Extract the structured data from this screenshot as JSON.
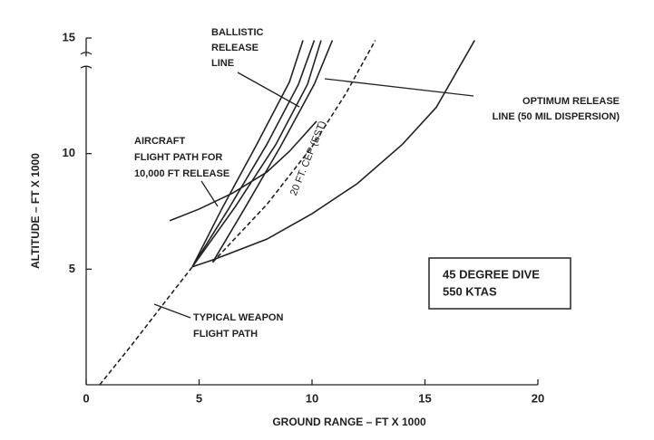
{
  "chart_data": {
    "type": "line",
    "xlabel": "GROUND RANGE – FT X 1000",
    "ylabel": "ALTITUDE – FT X 1000",
    "xlim": [
      0,
      20
    ],
    "xticks": [
      0,
      5,
      10,
      15,
      20
    ],
    "ylim": [
      0,
      15
    ],
    "yticks": [
      5,
      10,
      15
    ],
    "series": [
      {
        "color": "#222",
        "dashed": true,
        "x": [
          0.6,
          2,
          3.5,
          4.7
        ],
        "values": [
          0,
          1.7,
          3.6,
          5.1
        ]
      },
      {
        "color": "#222",
        "dashed": false,
        "x": [
          4.7,
          6,
          7.5,
          9,
          9.6
        ],
        "values": [
          5.1,
          7.6,
          10.3,
          13.1,
          14.9
        ]
      },
      {
        "color": "#222",
        "dashed": false,
        "x": [
          4.7,
          6.3,
          8,
          9.4,
          10.1
        ],
        "values": [
          5.1,
          7.6,
          10.4,
          13,
          14.9
        ]
      },
      {
        "color": "#222",
        "dashed": false,
        "x": [
          4.7,
          6.6,
          8.4,
          9.8,
          10.4
        ],
        "values": [
          5.1,
          7.7,
          10.4,
          13,
          14.9
        ]
      },
      {
        "color": "#222",
        "dashed": false,
        "x": [
          5.6,
          7,
          8.6,
          10.1,
          10.9
        ],
        "values": [
          5.3,
          7.6,
          10.3,
          13,
          14.9
        ]
      },
      {
        "color": "#222",
        "dashed": true,
        "x": [
          5.6,
          8,
          10,
          11.5,
          12.8
        ],
        "values": [
          5.3,
          7.8,
          10.3,
          12.6,
          14.9
        ]
      },
      {
        "color": "#222",
        "dashed": false,
        "x": [
          4.7,
          5.6,
          8,
          10,
          12,
          14,
          15.5,
          17.2
        ],
        "values": [
          5.1,
          5.4,
          6.3,
          7.4,
          8.7,
          10.4,
          12,
          14.9
        ]
      },
      {
        "color": "#222",
        "dashed": false,
        "x": [
          3.7,
          5,
          6.5,
          8,
          9,
          10.2
        ],
        "values": [
          7.1,
          7.6,
          8.3,
          9.2,
          10.1,
          11.4
        ]
      }
    ],
    "annotations": [
      {
        "lines": [
          "BALLISTIC",
          "RELEASE",
          "LINE"
        ]
      },
      {
        "lines": [
          "OPTIMUM RELEASE",
          "LINE (50 MIL DISPERSION)"
        ]
      },
      {
        "lines": [
          "AIRCRAFT",
          "FLIGHT PATH FOR",
          "10,000 FT RELEASE"
        ]
      },
      {
        "lines": [
          "TYPICAL WEAPON",
          "FLIGHT PATH"
        ]
      },
      {
        "lines": [
          "20 FT. CEP (EST)"
        ]
      },
      {
        "lines": [
          "45 DEGREE DIVE",
          "550 KTAS"
        ]
      }
    ]
  }
}
